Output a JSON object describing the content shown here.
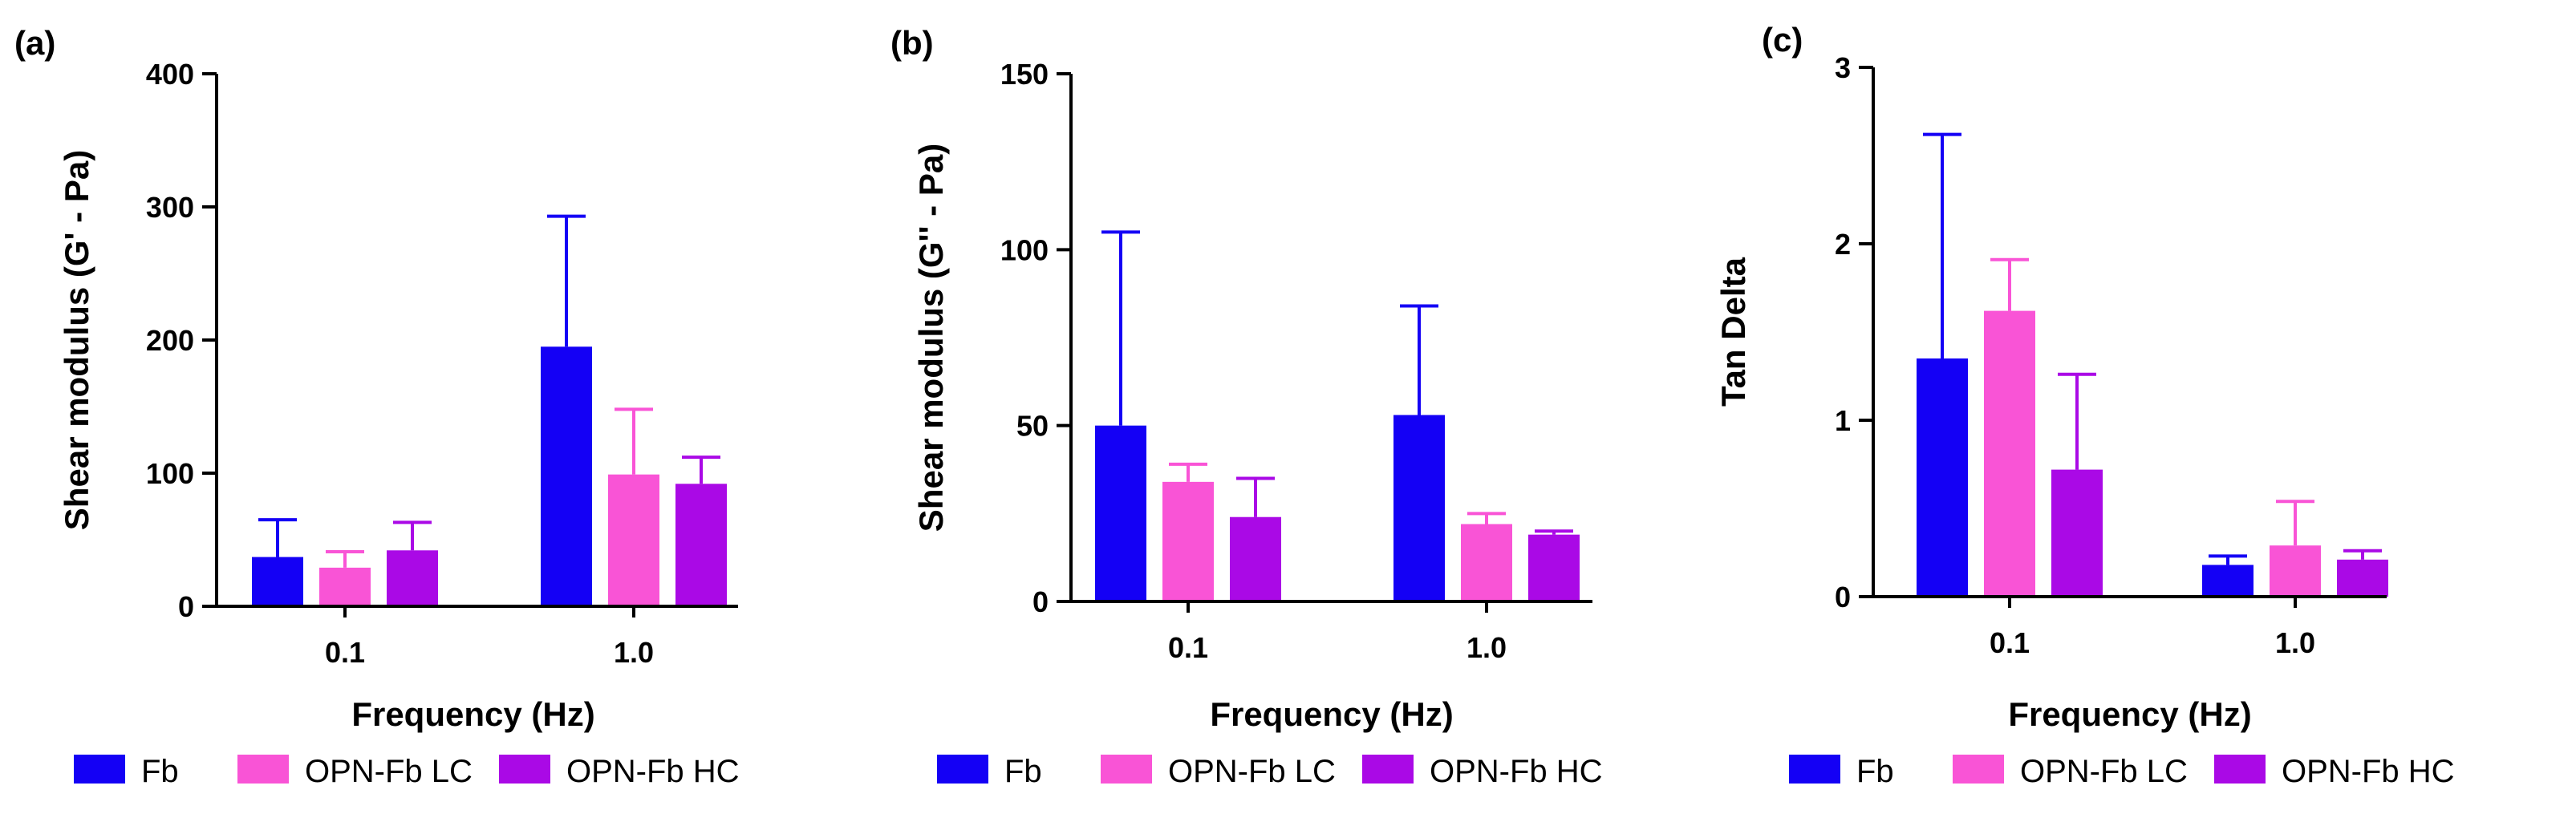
{
  "chart_data": [
    {
      "type": "bar",
      "panel_label": "(a)",
      "categories": [
        "0.1",
        "1.0"
      ],
      "xlabel": "Frequency (Hz)",
      "ylabel": "Shear modulus (G' - Pa)",
      "ylim": [
        0,
        400
      ],
      "yticks": [
        0,
        100,
        200,
        300,
        400
      ],
      "ytick_labels": [
        "0",
        "100",
        "200",
        "300",
        "400"
      ],
      "series": [
        {
          "name": "Fb",
          "color": "#1400f5",
          "values": [
            37,
            195
          ],
          "errors": [
            28,
            98
          ]
        },
        {
          "name": "OPN-Fb LC",
          "color": "#f954d6",
          "values": [
            29,
            99
          ],
          "errors": [
            12,
            49
          ]
        },
        {
          "name": "OPN-Fb HC",
          "color": "#aa09e6",
          "values": [
            42,
            92
          ],
          "errors": [
            21,
            20
          ]
        }
      ]
    },
    {
      "type": "bar",
      "panel_label": "(b)",
      "categories": [
        "0.1",
        "1.0"
      ],
      "xlabel": "Frequency (Hz)",
      "ylabel": "Shear modulus (G'' - Pa)",
      "ylim": [
        0,
        150
      ],
      "yticks": [
        0,
        50,
        100,
        150
      ],
      "ytick_labels": [
        "0",
        "50",
        "100",
        "150"
      ],
      "series": [
        {
          "name": "Fb",
          "color": "#1400f5",
          "values": [
            50,
            53
          ],
          "errors": [
            55,
            31
          ]
        },
        {
          "name": "OPN-Fb LC",
          "color": "#f954d6",
          "values": [
            34,
            22
          ],
          "errors": [
            5,
            3
          ]
        },
        {
          "name": "OPN-Fb HC",
          "color": "#aa09e6",
          "values": [
            24,
            19
          ],
          "errors": [
            11,
            1
          ]
        }
      ]
    },
    {
      "type": "bar",
      "panel_label": "(c)",
      "categories": [
        "0.1",
        "1.0"
      ],
      "xlabel": "Frequency (Hz)",
      "ylabel": "Tan Delta",
      "ylim": [
        0,
        3
      ],
      "yticks": [
        0,
        1,
        2,
        3
      ],
      "ytick_labels": [
        "0",
        "1",
        "2",
        "3"
      ],
      "series": [
        {
          "name": "Fb",
          "color": "#1400f5",
          "values": [
            1.35,
            0.18
          ],
          "errors": [
            1.27,
            0.05
          ]
        },
        {
          "name": "OPN-Fb LC",
          "color": "#f954d6",
          "values": [
            1.62,
            0.29
          ],
          "errors": [
            0.29,
            0.25
          ]
        },
        {
          "name": "OPN-Fb HC",
          "color": "#aa09e6",
          "values": [
            0.72,
            0.21
          ],
          "errors": [
            0.54,
            0.05
          ]
        }
      ]
    }
  ]
}
